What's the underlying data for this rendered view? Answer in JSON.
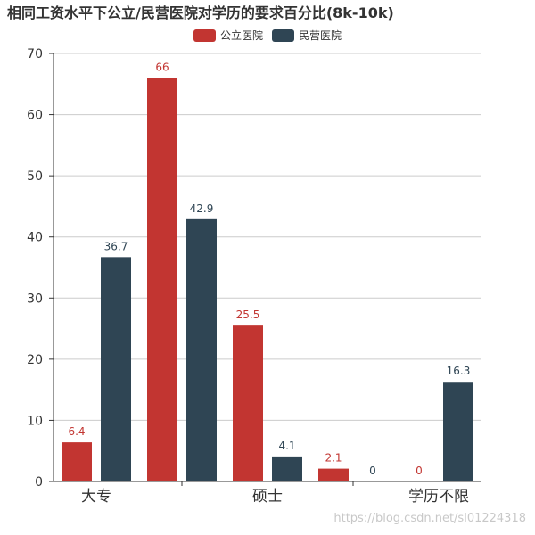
{
  "colors": {
    "public": "#c23531",
    "private": "#2f4554",
    "grid": "#cccccc",
    "axis": "#333333"
  },
  "chart_data": {
    "type": "bar",
    "title": "相同工资水平下公立/民营医院对学历的要求百分比(8k-10k)",
    "categories": [
      "大专",
      "",
      "硕士",
      "",
      "学历不限"
    ],
    "series": [
      {
        "name": "公立医院",
        "color": "#c23531",
        "values": [
          6.4,
          66,
          25.5,
          2.1,
          0
        ]
      },
      {
        "name": "民营医院",
        "color": "#2f4554",
        "values": [
          36.7,
          42.9,
          4.1,
          0,
          16.3
        ]
      }
    ],
    "ylim": [
      0,
      70
    ],
    "yticks": [
      0,
      10,
      20,
      30,
      40,
      50,
      60,
      70
    ],
    "grid": true,
    "legend_position": "top-center"
  },
  "watermark": "https://blog.csdn.net/sl01224318"
}
